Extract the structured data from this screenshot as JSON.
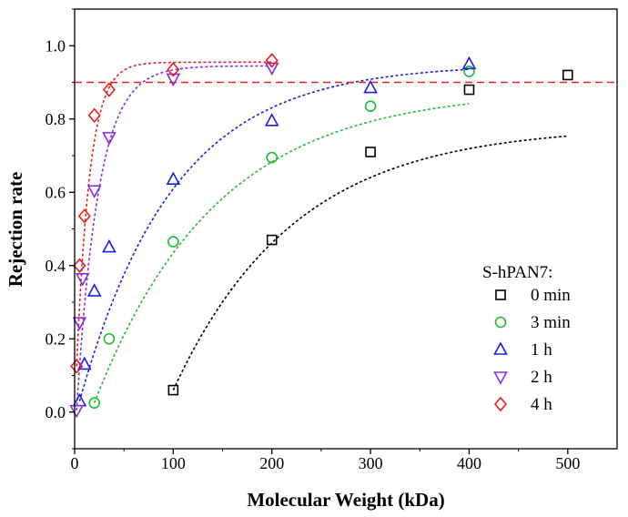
{
  "chart_data": {
    "type": "scatter",
    "xlabel": "Molecular Weight (kDa)",
    "ylabel": "Rejection rate",
    "xlim": [
      0,
      550
    ],
    "ylim": [
      -0.1,
      1.1
    ],
    "xticks": [
      "0",
      "100",
      "200",
      "300",
      "400",
      "500"
    ],
    "yticks": [
      "0.0",
      "0.2",
      "0.4",
      "0.6",
      "0.8",
      "1.0"
    ],
    "reference_line": {
      "y": 0.9,
      "style": "dashed",
      "color": "#e8211d"
    },
    "legend": {
      "title": "S-hPAN7:",
      "position": "right"
    },
    "series": [
      {
        "name": "0 min",
        "marker": "square",
        "color": "#000000",
        "x": [
          100,
          200,
          300,
          400,
          500
        ],
        "y": [
          0.06,
          0.47,
          0.71,
          0.88,
          0.92
        ],
        "fit": {
          "a": 0.78,
          "k": 120,
          "x0": 95
        }
      },
      {
        "name": "3 min",
        "marker": "circle",
        "color": "#1bbf2e",
        "x": [
          20,
          35,
          100,
          200,
          300,
          400
        ],
        "y": [
          0.025,
          0.2,
          0.465,
          0.695,
          0.835,
          0.93
        ],
        "fit": {
          "a": 0.88,
          "k": 122,
          "x0": 18
        }
      },
      {
        "name": "1 h",
        "marker": "triangle-up",
        "color": "#1a1ee3",
        "x": [
          5,
          10,
          20,
          35,
          100,
          200,
          300,
          400
        ],
        "y": [
          0.03,
          0.13,
          0.33,
          0.45,
          0.635,
          0.795,
          0.885,
          0.95
        ],
        "fit": {
          "a": 0.95,
          "k": 95,
          "x0": 3
        }
      },
      {
        "name": "2 h",
        "marker": "triangle-down",
        "color": "#8a2be2",
        "x": [
          2,
          5,
          8,
          20,
          35,
          100,
          200
        ],
        "y": [
          0.005,
          0.245,
          0.365,
          0.605,
          0.75,
          0.91,
          0.94
        ],
        "fit": {
          "a": 0.945,
          "k": 22,
          "x0": 2
        }
      },
      {
        "name": "4 h",
        "marker": "diamond",
        "color": "#e8211d",
        "x": [
          2,
          5,
          10,
          20,
          35,
          100,
          200
        ],
        "y": [
          0.125,
          0.4,
          0.535,
          0.81,
          0.88,
          0.935,
          0.96
        ],
        "fit": {
          "a": 0.955,
          "k": 13,
          "x0": 1
        }
      }
    ]
  }
}
